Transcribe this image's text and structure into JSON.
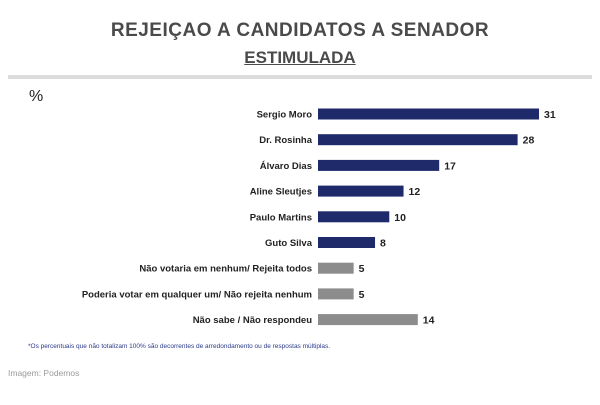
{
  "header": {
    "title": "REJEIÇAO A CANDIDATOS A SENADOR",
    "subtitle": "ESTIMULADA"
  },
  "unit_label": "%",
  "footnote": "*Os percentuais que não totalizam 100% são decorrentes de arredondamento ou de respostas múltiplas.",
  "caption": "Imagem: Podemos",
  "colors": {
    "candidate_bar": "#1f2a6b",
    "other_bar": "#8c8c8c"
  },
  "chart_data": {
    "type": "bar",
    "orientation": "horizontal",
    "categories": [
      "Sergio Moro",
      "Dr. Rosinha",
      "Álvaro Dias",
      "Aline Sleutjes",
      "Paulo Martins",
      "Guto Silva",
      "Não votaria em nenhum/ Rejeita todos",
      "Poderia votar em qualquer um/ Não rejeita nenhum",
      "Não sabe / Não respondeu"
    ],
    "values": [
      31,
      28,
      17,
      12,
      10,
      8,
      5,
      5,
      14
    ],
    "bar_colors": [
      "#1f2a6b",
      "#1f2a6b",
      "#1f2a6b",
      "#1f2a6b",
      "#1f2a6b",
      "#1f2a6b",
      "#8c8c8c",
      "#8c8c8c",
      "#8c8c8c"
    ],
    "xlim": [
      0,
      31
    ],
    "grid": false
  }
}
